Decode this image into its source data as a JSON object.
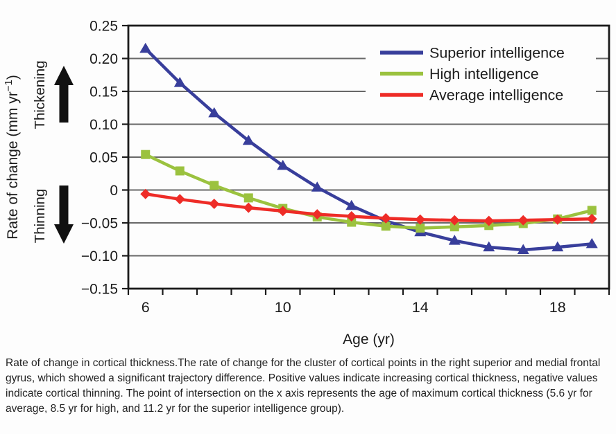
{
  "figure": {
    "caption": "Rate of change in cortical thickness.The rate of change for the cluster of cortical points in the right superior and medial frontal gyrus, which showed a significant trajectory difference. Positive values indicate increasing cortical thickness, negative values indicate cortical thinning. The point of intersection on the x axis represents the age of maximum cortical thickness (5.6 yr for average, 8.5 yr for high, and 11.2 yr for the superior intelligence group)."
  },
  "colors": {
    "background": "#fdfdfd",
    "grid": "#686868",
    "axis": "#1b1b1b",
    "text": "#1b1b1b",
    "blue": "#383e9b",
    "green": "#9bc23f",
    "red": "#ee2c27"
  },
  "chart_data": {
    "type": "line",
    "title": "",
    "xlabel": "Age (yr)",
    "ylabel": {
      "text": "Rate of change (mm yr",
      "superscript": "−1",
      "suffix": ")"
    },
    "x": [
      6,
      7,
      8,
      9,
      10,
      11,
      12,
      13,
      14,
      15,
      16,
      17,
      18,
      19
    ],
    "ylim": [
      -0.15,
      0.25
    ],
    "grid": "horizontal",
    "legend_position": "top-right",
    "y_ticks": [
      {
        "v": 0.25,
        "label": "0.25"
      },
      {
        "v": 0.2,
        "label": "0.20"
      },
      {
        "v": 0.15,
        "label": "0.15"
      },
      {
        "v": 0.1,
        "label": "0.10"
      },
      {
        "v": 0.05,
        "label": "0.05"
      },
      {
        "v": 0.0,
        "label": "0"
      },
      {
        "v": -0.05,
        "label": "−0.05"
      },
      {
        "v": -0.1,
        "label": "−0.10"
      },
      {
        "v": -0.15,
        "label": "−0.15"
      }
    ],
    "x_tick_labels": [
      {
        "v": 6,
        "label": "6"
      },
      {
        "v": 10,
        "label": "10"
      },
      {
        "v": 14,
        "label": "14"
      },
      {
        "v": 18,
        "label": "18"
      }
    ],
    "annotations": [
      {
        "label": "Thickening",
        "direction": "up"
      },
      {
        "label": "Thinning",
        "direction": "down"
      }
    ],
    "series": [
      {
        "name": "Superior intelligence",
        "color_key": "blue",
        "marker": "triangle",
        "values": [
          0.215,
          0.163,
          0.117,
          0.075,
          0.037,
          0.004,
          -0.024,
          -0.047,
          -0.064,
          -0.077,
          -0.087,
          -0.091,
          -0.087,
          -0.082
        ]
      },
      {
        "name": "High intelligence",
        "color_key": "green",
        "marker": "square",
        "values": [
          0.054,
          0.029,
          0.007,
          -0.012,
          -0.028,
          -0.041,
          -0.049,
          -0.055,
          -0.058,
          -0.056,
          -0.054,
          -0.051,
          -0.044,
          -0.031
        ]
      },
      {
        "name": "Average intelligence",
        "color_key": "red",
        "marker": "diamond",
        "values": [
          -0.006,
          -0.014,
          -0.021,
          -0.027,
          -0.032,
          -0.037,
          -0.04,
          -0.043,
          -0.045,
          -0.046,
          -0.047,
          -0.046,
          -0.045,
          -0.044
        ]
      }
    ]
  }
}
